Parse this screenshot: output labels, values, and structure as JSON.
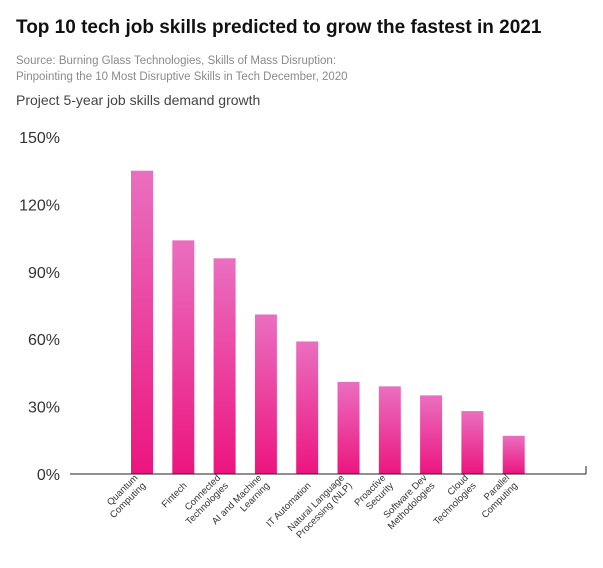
{
  "header": {
    "title": "Top 10 tech job skills predicted to grow the fastest in 2021",
    "source_line1": "Source: Burning Glass Technologies, Skills of Mass Disruption:",
    "source_line2": "Pinpointing the 10 Most Disruptive Skills in Tech December, 2020"
  },
  "chart_data": {
    "type": "bar",
    "ylabel": "Project 5-year job skills demand growth",
    "categories": [
      [
        "Quantum",
        "Computing"
      ],
      [
        "Fintech"
      ],
      [
        "Connected",
        "Technologies"
      ],
      [
        "AI and Machine",
        "Learning"
      ],
      [
        "IT Automation"
      ],
      [
        "Natural Language",
        "Processing (NLP)"
      ],
      [
        "Proactive",
        "Security"
      ],
      [
        "Software Dev",
        "Methodologies"
      ],
      [
        "Cloud",
        "Technologies"
      ],
      [
        "Parallel",
        "Computing"
      ]
    ],
    "values": [
      135,
      104,
      96,
      71,
      59,
      41,
      39,
      35,
      28,
      17
    ],
    "ylim": [
      0,
      150
    ],
    "yticks": [
      0,
      30,
      60,
      90,
      120,
      150
    ],
    "ytick_labels": [
      "0%",
      "30%",
      "60%",
      "90%",
      "120%",
      "150%"
    ],
    "grid": false,
    "colors": {
      "bar_top": "#ea6fc0",
      "bar_bottom": "#ec157f",
      "axis": "#222222"
    }
  }
}
